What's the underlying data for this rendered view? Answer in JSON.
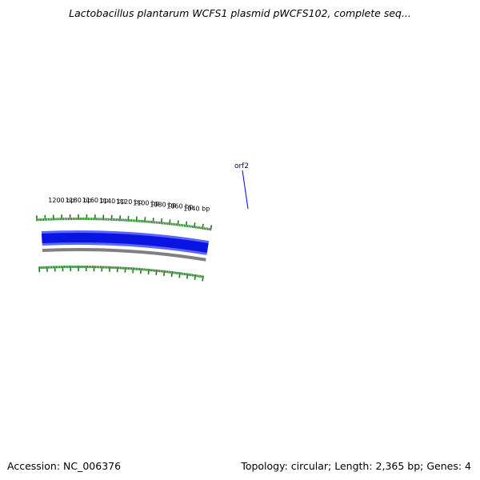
{
  "title": "Lactobacillus plantarum WCFS1 plasmid pWCFS102, complete seq...",
  "footer": {
    "accession": "Accession: NC_006376",
    "summary": "Topology: circular; Length: 2,365 bp; Genes: 4"
  },
  "colors": {
    "gene_track": "#0a14e0",
    "gene_track_edge": "#5b66ff",
    "backbone": "#808080",
    "ticks": "#1e7a1e",
    "gene_label": "#000080"
  },
  "tick_labels": [
    {
      "text": "1040 bp",
      "pos": 1040
    },
    {
      "text": "1060 bp",
      "pos": 1060
    },
    {
      "text": "1080 bp",
      "pos": 1080
    },
    {
      "text": "1100 bp",
      "pos": 1100
    },
    {
      "text": "1120 bp",
      "pos": 1120
    },
    {
      "text": "1140 bp",
      "pos": 1140
    },
    {
      "text": "1160 bp",
      "pos": 1160
    },
    {
      "text": "1180 bp",
      "pos": 1180
    },
    {
      "text": "1200 bp",
      "pos": 1200
    }
  ],
  "genes": [
    {
      "label": "orf2"
    }
  ]
}
